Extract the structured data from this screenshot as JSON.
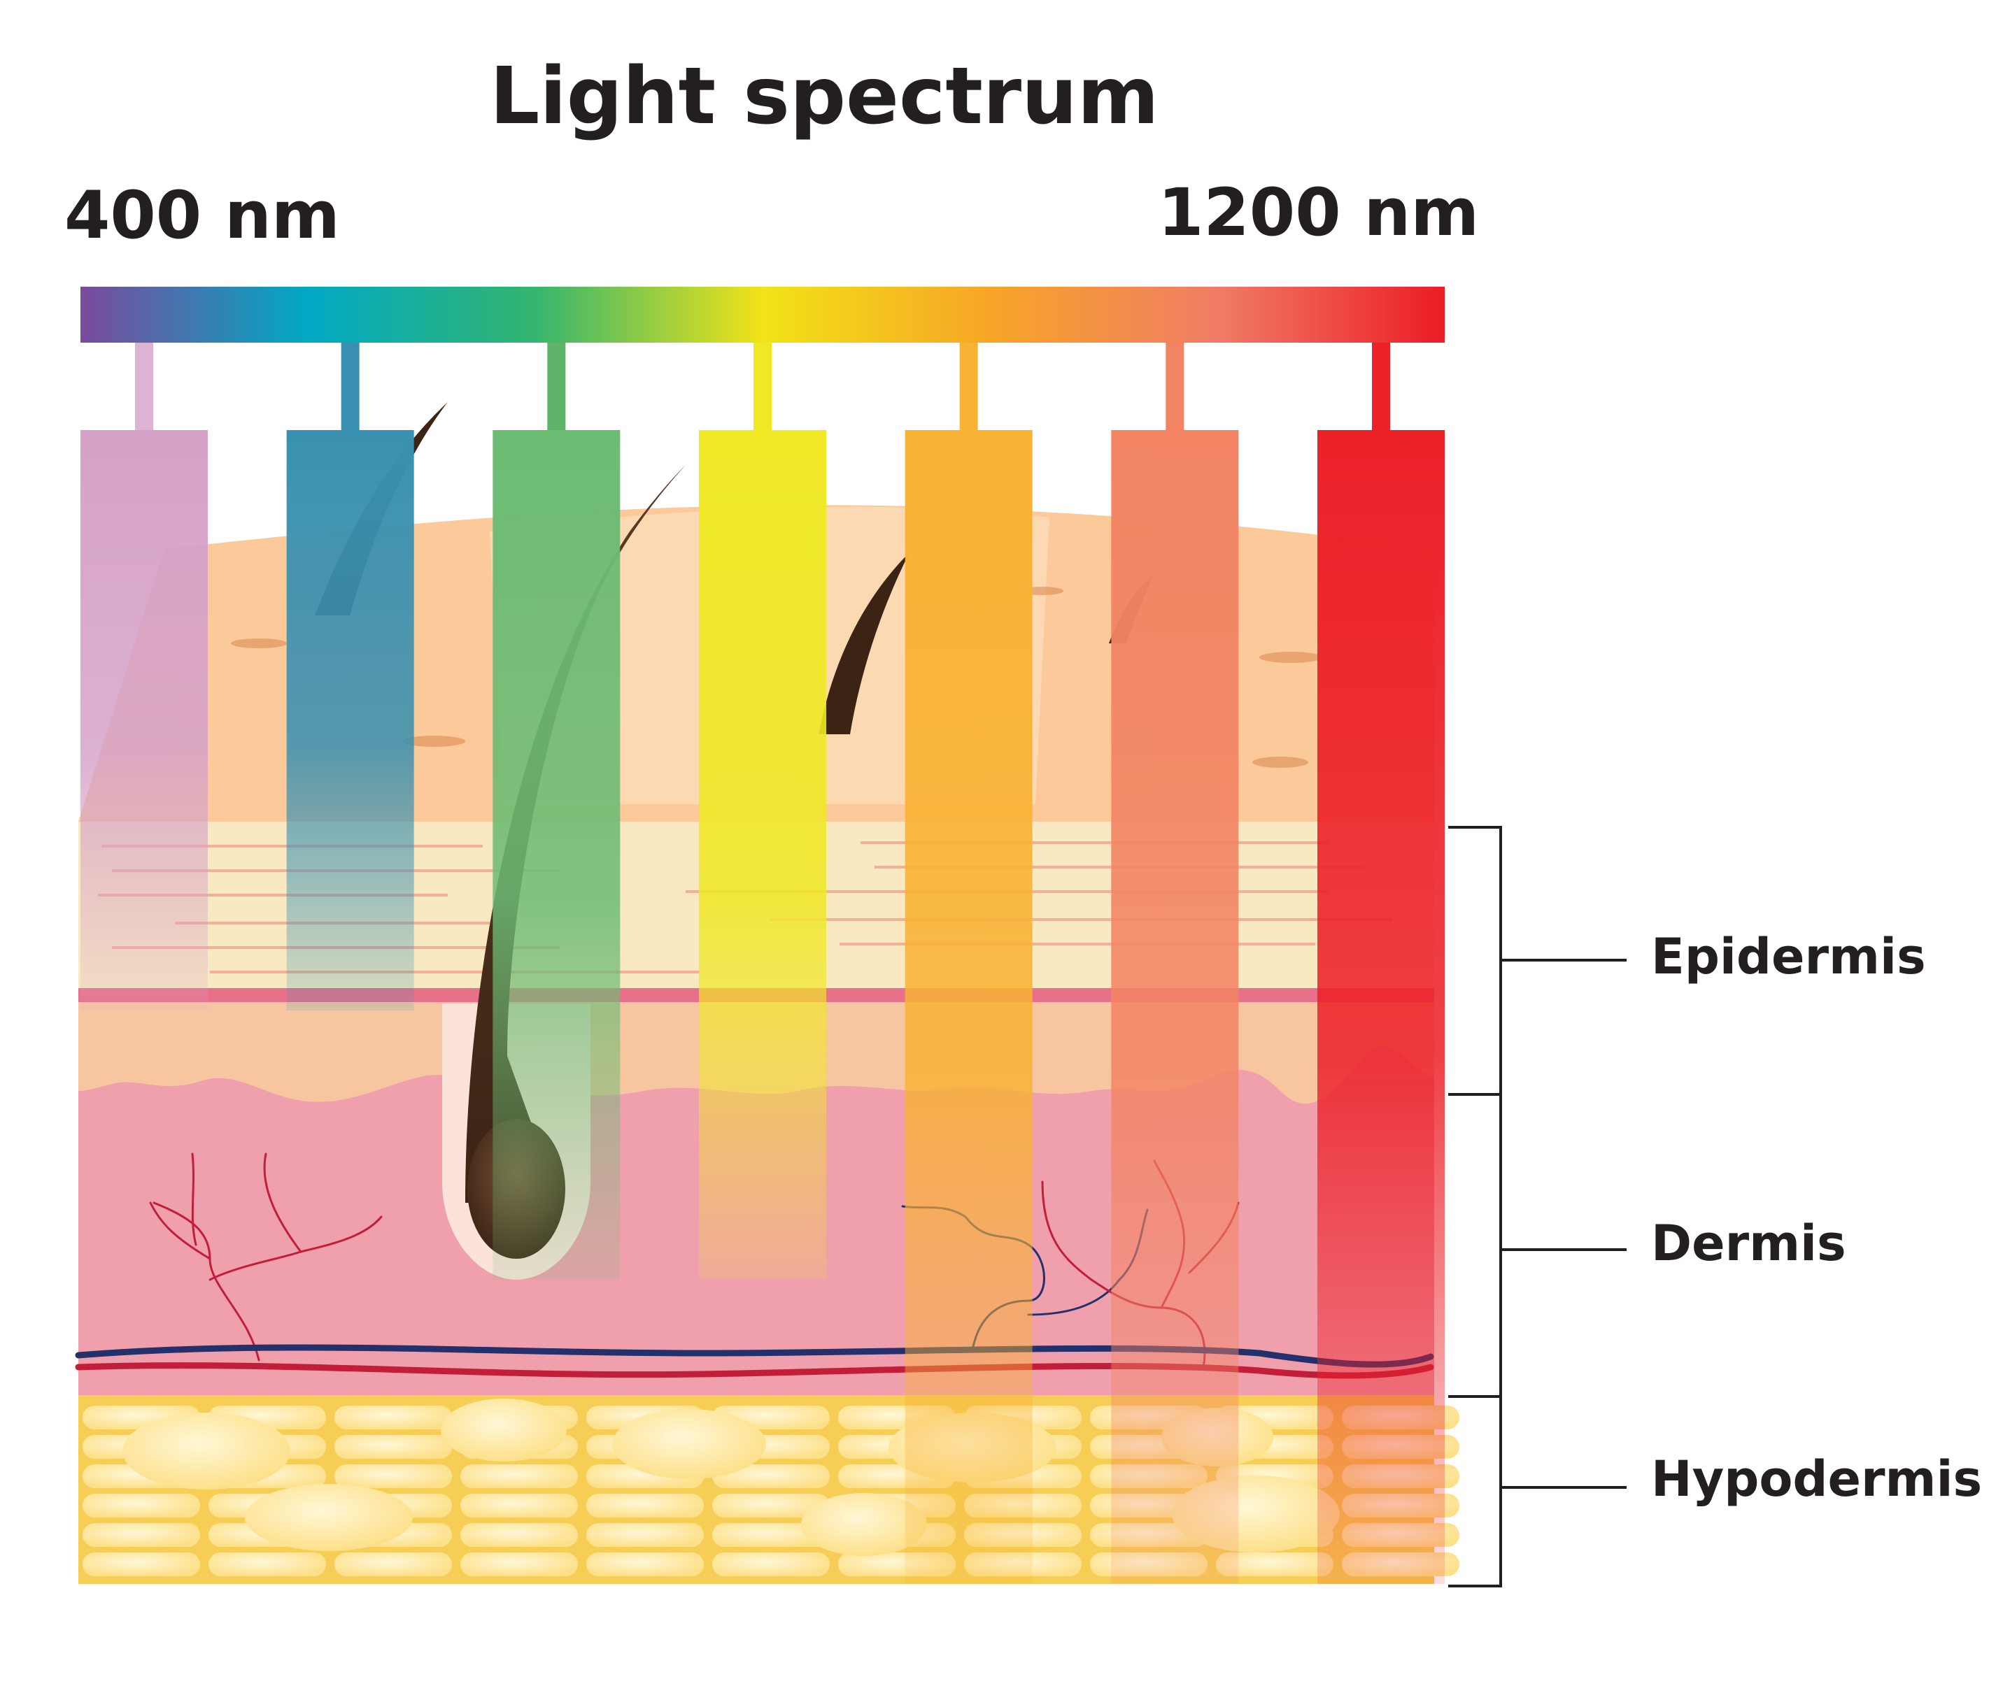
{
  "title": "Light spectrum",
  "spectrum": {
    "min_label": "400 nm",
    "max_label": "1200 nm",
    "gradient_colors": [
      "#7b4a9c",
      "#00a9c4",
      "#34b56f",
      "#f2e317",
      "#f7a526",
      "#f07c66",
      "#ec1c24"
    ],
    "bands": [
      {
        "color": "#d6a2c8",
        "connector": "#dcb3d2",
        "depth": "epidermis"
      },
      {
        "color": "#3a90b0",
        "connector": "#3a90b0",
        "depth": "epidermis"
      },
      {
        "color": "#6cbb73",
        "connector": "#5fb46a",
        "depth": "dermis"
      },
      {
        "color": "#f0e825",
        "connector": "#f0e825",
        "depth": "dermis"
      },
      {
        "color": "#f8b234",
        "connector": "#f8b234",
        "depth": "hypodermis"
      },
      {
        "color": "#f28464",
        "connector": "#f28464",
        "depth": "hypodermis"
      },
      {
        "color": "#ec2128",
        "connector": "#ec2128",
        "depth": "hypodermis"
      }
    ]
  },
  "layers": [
    {
      "name": "Epidermis"
    },
    {
      "name": "Dermis"
    },
    {
      "name": "Hypodermis"
    }
  ],
  "colors": {
    "skin_surface": "#fbc99a",
    "epidermis": "#f9e9c2",
    "basal_line": "#e8708a",
    "dermis": "#f0a0ad",
    "hypodermis": "#f6cd55",
    "fat_cell": "#fde38a",
    "hair": "#3c2415",
    "vein": "#23306b",
    "artery": "#c21e3a",
    "bracket": "#231f20"
  }
}
